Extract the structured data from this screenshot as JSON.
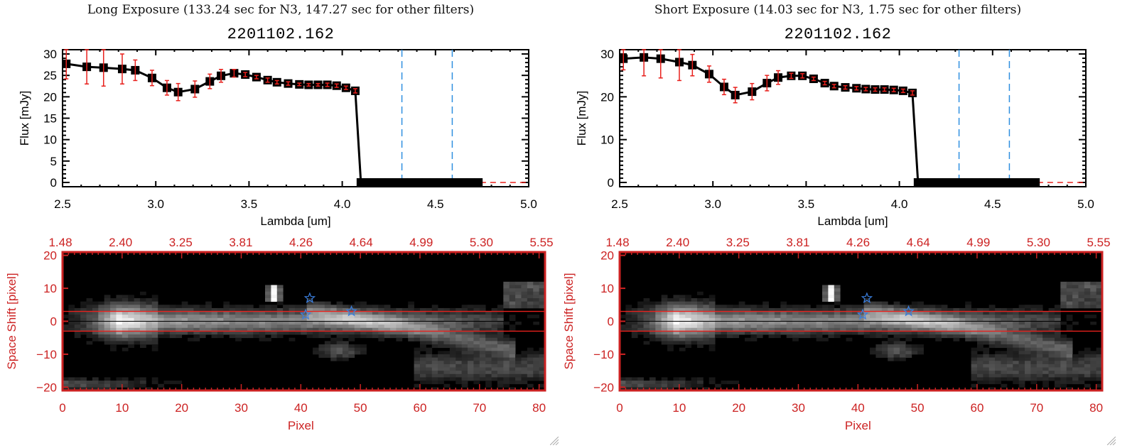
{
  "panels": [
    {
      "id": "long",
      "title": "Long Exposure (133.24 sec for N3, 147.27 sec for other filters)",
      "object_id": "2201102.162"
    },
    {
      "id": "short",
      "title": "Short Exposure (14.03 sec for N3, 1.75 sec for other filters)",
      "object_id": "2201102.162"
    }
  ],
  "colors": {
    "line": "#000000",
    "errorbar": "#e8201c",
    "marker": "#000000",
    "vline": "#2f8fe0",
    "zero_line": "#e8201c",
    "image_axis": "#cc2222",
    "star": "#3a7fe0",
    "aperture": "#e8201c"
  },
  "chart_data": [
    {
      "type": "line",
      "panel": "long",
      "title": "2201102.162",
      "xlabel": "Lambda [um]",
      "ylabel": "Flux [mJy]",
      "xlim": [
        2.5,
        5.0
      ],
      "ylim": [
        -1,
        31
      ],
      "xticks": [
        "2.5",
        "3.0",
        "3.5",
        "4.0",
        "4.5",
        "5.0"
      ],
      "xtick_values": [
        2.5,
        3.0,
        3.5,
        4.0,
        4.5,
        5.0
      ],
      "yticks": [
        "0",
        "5",
        "10",
        "15",
        "20",
        "25",
        "30"
      ],
      "ytick_values": [
        0,
        5,
        10,
        15,
        20,
        25,
        30
      ],
      "vlines": [
        4.32,
        4.59
      ],
      "hline": 0,
      "series": [
        {
          "name": "flux",
          "x": [
            2.52,
            2.63,
            2.72,
            2.82,
            2.89,
            2.98,
            3.06,
            3.12,
            3.21,
            3.29,
            3.35,
            3.42,
            3.48,
            3.54,
            3.6,
            3.65,
            3.71,
            3.77,
            3.82,
            3.87,
            3.92,
            3.97,
            4.02,
            4.07,
            4.1,
            4.13,
            4.17,
            4.21,
            4.25,
            4.29,
            4.33,
            4.37,
            4.41,
            4.45,
            4.49,
            4.53,
            4.57,
            4.61,
            4.65,
            4.69,
            4.73
          ],
          "y": [
            27.7,
            27.0,
            26.8,
            26.5,
            26.2,
            24.4,
            22.1,
            21.1,
            21.8,
            23.6,
            24.9,
            25.5,
            25.2,
            24.6,
            23.9,
            23.4,
            23.1,
            22.9,
            22.8,
            22.8,
            22.8,
            22.6,
            22.1,
            21.4,
            0,
            0,
            0,
            0,
            0,
            0,
            0,
            0,
            0,
            0,
            0,
            0,
            0,
            0,
            0,
            0,
            0
          ],
          "yerr": [
            3.5,
            4.0,
            4.3,
            3.5,
            2.4,
            1.8,
            1.7,
            2.0,
            1.9,
            1.7,
            1.5,
            0.9,
            0.5,
            0.4,
            0.5,
            0.4,
            0.4,
            0.3,
            0.3,
            0.3,
            0.4,
            0.4,
            0.4,
            0.5,
            0,
            0,
            0,
            0,
            0,
            0,
            0,
            0,
            0,
            0,
            0,
            0,
            0,
            0,
            0,
            0,
            0
          ]
        }
      ]
    },
    {
      "type": "line",
      "panel": "short",
      "title": "2201102.162",
      "xlabel": "Lambda [um]",
      "ylabel": "Flux [mJy]",
      "xlim": [
        2.5,
        5.0
      ],
      "ylim": [
        -1,
        31
      ],
      "xticks": [
        "2.5",
        "3.0",
        "3.5",
        "4.0",
        "4.5",
        "5.0"
      ],
      "xtick_values": [
        2.5,
        3.0,
        3.5,
        4.0,
        4.5,
        5.0
      ],
      "yticks": [
        "0",
        "10",
        "20",
        "30"
      ],
      "ytick_values": [
        0,
        10,
        20,
        30
      ],
      "vlines": [
        4.32,
        4.59
      ],
      "hline": 0,
      "series": [
        {
          "name": "flux",
          "x": [
            2.52,
            2.63,
            2.72,
            2.82,
            2.89,
            2.98,
            3.06,
            3.12,
            3.21,
            3.29,
            3.35,
            3.42,
            3.48,
            3.54,
            3.6,
            3.65,
            3.71,
            3.77,
            3.82,
            3.87,
            3.92,
            3.97,
            4.02,
            4.07,
            4.1,
            4.13,
            4.17,
            4.21,
            4.25,
            4.29,
            4.33,
            4.37,
            4.41,
            4.45,
            4.49,
            4.53,
            4.57,
            4.61,
            4.65,
            4.69,
            4.73
          ],
          "y": [
            28.9,
            29.2,
            28.9,
            28.1,
            27.4,
            25.3,
            22.3,
            20.4,
            21.2,
            23.2,
            24.5,
            24.9,
            24.9,
            24.2,
            23.2,
            22.5,
            22.2,
            22.0,
            21.8,
            21.7,
            21.7,
            21.6,
            21.4,
            20.9,
            0,
            0,
            0,
            0,
            0,
            0,
            0,
            0,
            0,
            0,
            0,
            0,
            0,
            0,
            0,
            0,
            0
          ],
          "yerr": [
            2.6,
            4.3,
            4.5,
            4.3,
            2.5,
            1.9,
            1.8,
            1.8,
            1.9,
            1.8,
            1.6,
            0.6,
            0.5,
            0.4,
            0.4,
            0.4,
            0.4,
            0.4,
            0.4,
            0.4,
            0.4,
            0.4,
            0.4,
            0.5,
            0,
            0,
            0,
            0,
            0,
            0,
            0,
            0,
            0,
            0,
            0,
            0,
            0,
            0,
            0,
            0,
            0
          ]
        }
      ]
    },
    {
      "type": "heatmap",
      "panel": "long",
      "xlabel": "Pixel",
      "ylabel": "Space Shift [pixel]",
      "xlim": [
        0,
        81
      ],
      "ylim": [
        -21,
        21
      ],
      "xticks": [
        "0",
        "10",
        "20",
        "30",
        "40",
        "50",
        "60",
        "70",
        "80"
      ],
      "xtick_values": [
        0,
        10,
        20,
        30,
        40,
        50,
        60,
        70,
        80
      ],
      "yticks": [
        "-20",
        "-10",
        "0",
        "10",
        "20"
      ],
      "ytick_values": [
        -20,
        -10,
        0,
        10,
        20
      ],
      "top_xticks": [
        "1.48",
        "2.40",
        "3.25",
        "3.81",
        "4.26",
        "4.64",
        "4.99",
        "5.30",
        "5.55"
      ],
      "aperture_lines": [
        3,
        -3
      ],
      "center_line": 0,
      "stars": [
        [
          41.5,
          7
        ],
        [
          40.8,
          2
        ],
        [
          48.5,
          3
        ]
      ]
    },
    {
      "type": "heatmap",
      "panel": "short",
      "xlabel": "Pixel",
      "ylabel": "Space Shift [pixel]",
      "xlim": [
        0,
        81
      ],
      "ylim": [
        -21,
        21
      ],
      "xticks": [
        "0",
        "10",
        "20",
        "30",
        "40",
        "50",
        "60",
        "70",
        "80"
      ],
      "xtick_values": [
        0,
        10,
        20,
        30,
        40,
        50,
        60,
        70,
        80
      ],
      "yticks": [
        "-20",
        "-10",
        "0",
        "10",
        "20"
      ],
      "ytick_values": [
        -20,
        -10,
        0,
        10,
        20
      ],
      "top_xticks": [
        "1.48",
        "2.40",
        "3.25",
        "3.81",
        "4.26",
        "4.64",
        "4.99",
        "5.30",
        "5.55"
      ],
      "aperture_lines": [
        3,
        -3
      ],
      "center_line": 0,
      "stars": [
        [
          41.5,
          7
        ],
        [
          40.8,
          2
        ],
        [
          48.5,
          3
        ]
      ]
    }
  ]
}
